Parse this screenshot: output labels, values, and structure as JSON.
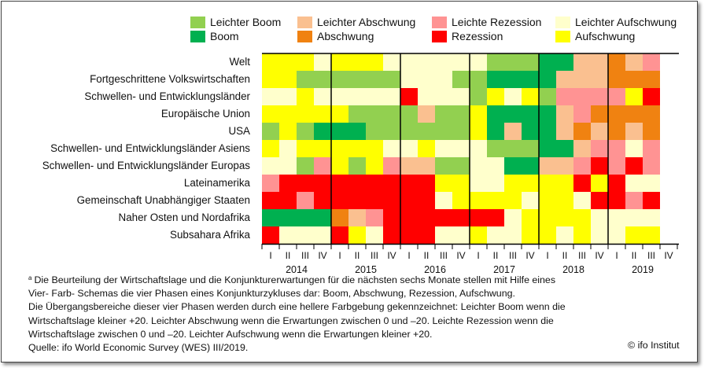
{
  "legend": {
    "items": [
      {
        "label": "Leichter Boom",
        "color": "#92d050"
      },
      {
        "label": "Boom",
        "color": "#00b050"
      },
      {
        "label": "Leichter Abschwung",
        "color": "#fac090"
      },
      {
        "label": "Abschwung",
        "color": "#f08211"
      },
      {
        "label": "Leichte Rezession",
        "color": "#ff9393"
      },
      {
        "label": "Rezession",
        "color": "#ff0000"
      },
      {
        "label": "Leichter Aufschwung",
        "color": "#ffffcc"
      },
      {
        "label": "Aufschwung",
        "color": "#ffff00"
      }
    ]
  },
  "chart_data": {
    "type": "heatmap",
    "title": "",
    "phase_codes": {
      "LB": "Leichter Boom",
      "B": "Boom",
      "LA": "Leichter Abschwung",
      "A": "Abschwung",
      "LR": "Leichte Rezession",
      "R": "Rezession",
      "LU": "Leichter Aufschwung",
      "U": "Aufschwung"
    },
    "colors": {
      "LB": "#92d050",
      "B": "#00b050",
      "LA": "#fac090",
      "A": "#f08211",
      "LR": "#ff9393",
      "R": "#ff0000",
      "LU": "#ffffcc",
      "U": "#ffff00"
    },
    "years": [
      "2014",
      "2015",
      "2016",
      "2017",
      "2018",
      "2019"
    ],
    "quarters": [
      "I",
      "II",
      "III",
      "IV"
    ],
    "rows": [
      {
        "label": "Welt",
        "values": [
          "U",
          "U",
          "U",
          "LU",
          "U",
          "U",
          "U",
          "LU",
          "LU",
          "LU",
          "LU",
          "LU",
          "LU",
          "LB",
          "LB",
          "LB",
          "B",
          "B",
          "LA",
          "LA",
          "A",
          "LA",
          "LR"
        ]
      },
      {
        "label": "Fortgeschrittene Volkswirtschaften",
        "values": [
          "U",
          "U",
          "LB",
          "LB",
          "LB",
          "LB",
          "LB",
          "LB",
          "LU",
          "LU",
          "LU",
          "LB",
          "LB",
          "B",
          "B",
          "B",
          "B",
          "LA",
          "LA",
          "LA",
          "A",
          "A",
          "A"
        ]
      },
      {
        "label": "Schwellen- und Entwicklungsländer",
        "values": [
          "LU",
          "LU",
          "U",
          "LU",
          "LU",
          "LU",
          "LU",
          "LU",
          "R",
          "LU",
          "LU",
          "LU",
          "LB",
          "U",
          "LU",
          "U",
          "LB",
          "LR",
          "LR",
          "LR",
          "LR",
          "U",
          "R"
        ]
      },
      {
        "label": "Europäische Union",
        "values": [
          "U",
          "U",
          "U",
          "U",
          "U",
          "LB",
          "LB",
          "LB",
          "LB",
          "LA",
          "LB",
          "LB",
          "U",
          "B",
          "B",
          "B",
          "B",
          "LA",
          "LR",
          "A",
          "A",
          "A",
          "A"
        ]
      },
      {
        "label": "USA",
        "values": [
          "LB",
          "U",
          "LB",
          "B",
          "B",
          "B",
          "LB",
          "LB",
          "LB",
          "LB",
          "LB",
          "LB",
          "U",
          "B",
          "LA",
          "B",
          "B",
          "LA",
          "A",
          "LA",
          "A",
          "LA",
          "A"
        ]
      },
      {
        "label": "Schwellen- und Entwicklungsländer Asiens",
        "values": [
          "U",
          "LU",
          "U",
          "U",
          "U",
          "U",
          "U",
          "LU",
          "LU",
          "U",
          "LU",
          "LU",
          "LU",
          "LB",
          "LB",
          "LB",
          "B",
          "B",
          "LA",
          "LR",
          "LR",
          "LU",
          "LR"
        ]
      },
      {
        "label": "Schwellen- und Entwicklungsländer Europas",
        "values": [
          "LU",
          "LU",
          "LB",
          "LR",
          "U",
          "LB",
          "U",
          "LR",
          "LA",
          "LA",
          "LB",
          "LB",
          "LU",
          "LU",
          "B",
          "B",
          "LA",
          "LA",
          "LR",
          "R",
          "LR",
          "R",
          "LR"
        ]
      },
      {
        "label": "Lateinamerika",
        "values": [
          "LR",
          "R",
          "R",
          "R",
          "R",
          "R",
          "R",
          "R",
          "R",
          "R",
          "U",
          "U",
          "LU",
          "LU",
          "U",
          "U",
          "U",
          "U",
          "R",
          "U",
          "R",
          "LU",
          "LU"
        ]
      },
      {
        "label": "Gemeinschaft Unabhängiger Staaten",
        "values": [
          "R",
          "R",
          "LR",
          "R",
          "R",
          "R",
          "R",
          "R",
          "R",
          "R",
          "LU",
          "U",
          "U",
          "U",
          "U",
          "LU",
          "U",
          "U",
          "LU",
          "R",
          "R",
          "LR",
          "R"
        ]
      },
      {
        "label": "Naher Osten und Nordafrika",
        "values": [
          "B",
          "B",
          "B",
          "B",
          "A",
          "LA",
          "LR",
          "R",
          "R",
          "R",
          "R",
          "R",
          "R",
          "R",
          "LU",
          "U",
          "U",
          "U",
          "U",
          "LU",
          "LU",
          "LU",
          "LU"
        ]
      },
      {
        "label": "Subsahara Afrika",
        "values": [
          "R",
          "LU",
          "LU",
          "LU",
          "R",
          "U",
          "LU",
          "R",
          "R",
          "R",
          "LU",
          "LU",
          "U",
          "LU",
          "LU",
          "U",
          "U",
          "LU",
          "U",
          "LU",
          "LU",
          "U",
          "U"
        ]
      }
    ]
  },
  "footnote": {
    "marker": "a",
    "lines": [
      "Die Beurteilung der Wirtschaftslage und die Konjunkturerwartungen für die nächsten sechs Monate stellen mit Hilfe eines",
      "Vier- Farb- Schemas die vier Phasen eines Konjunkturzykluses dar: Boom, Abschwung, Rezession, Aufschwung.",
      "Die Übergangsbereiche dieser vier Phasen werden durch eine hellere Farbgebung gekennzeichnet: Leichter Boom   wenn die",
      "Wirtschaftslage kleiner +20. Leichter Abschwung   wenn die Erwartungen zwischen 0 und –20. Leichte Rezession   wenn die",
      "Wirtschaftslage zwischen 0 und –20. Leichter Aufschwung   wenn die Erwartungen kleiner +20."
    ],
    "source": "Quelle: ifo World Economic Survey (WES) III/2019."
  },
  "copyright": "© ifo Institut"
}
